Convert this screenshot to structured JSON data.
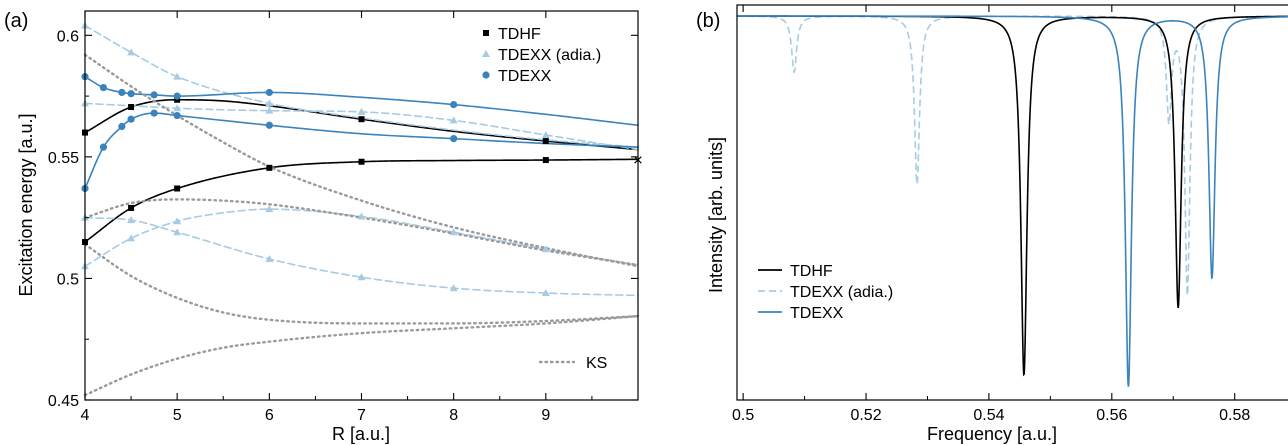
{
  "chart_data": [
    {
      "type": "line",
      "panel_label": "(a)",
      "xlabel": "R [a.u.]",
      "ylabel": "Excitation energy [a.u.]",
      "xlim": [
        4,
        10
      ],
      "ylim": [
        0.45,
        0.61
      ],
      "xticks": [
        4,
        5,
        6,
        7,
        8,
        9
      ],
      "yticks": [
        0.45,
        0.5,
        0.55,
        0.6
      ],
      "xtick_labels": [
        "4",
        "5",
        "6",
        "7",
        "8",
        "9"
      ],
      "ytick_labels": [
        "0.45",
        "0.5",
        "0.55",
        "0.6"
      ],
      "legend_top": "top-right",
      "legend_bottom": "bottom-right",
      "grid": false,
      "limit_marker": {
        "x": 10,
        "y": 0.549,
        "symbol": "×"
      },
      "series": [
        {
          "name": "TDHF",
          "style": "solid",
          "marker": "square",
          "color": "#000000",
          "legend": "top",
          "x": [
            4,
            4.5,
            5,
            6,
            7,
            8,
            9,
            10
          ],
          "y": [
            0.515,
            0.529,
            0.537,
            0.5455,
            0.548,
            0.5485,
            0.5487,
            0.549
          ],
          "mx": [
            4,
            4.5,
            5,
            6,
            7,
            9
          ]
        },
        {
          "name": "",
          "style": "solid",
          "marker": "square",
          "color": "#000000",
          "x": [
            4,
            4.5,
            5,
            5.5,
            6,
            7,
            8,
            9,
            10
          ],
          "y": [
            0.56,
            0.5705,
            0.5735,
            0.573,
            0.571,
            0.5655,
            0.5605,
            0.5565,
            0.553
          ],
          "mx": [
            4,
            4.5,
            5,
            7,
            9
          ]
        },
        {
          "name": "TDEXX (adia.)",
          "style": "dashed",
          "marker": "triangle",
          "color": "#a6cbe3",
          "legend": "top",
          "x": [
            4,
            4.5,
            5,
            6,
            7,
            8,
            9,
            10
          ],
          "y": [
            0.604,
            0.593,
            0.583,
            0.572,
            0.566,
            0.561,
            0.557,
            0.554
          ],
          "mx": [
            4,
            4.5,
            5,
            6
          ]
        },
        {
          "name": "",
          "style": "dashed",
          "marker": "triangle",
          "color": "#a6cbe3",
          "x": [
            4,
            4.5,
            5,
            6,
            7,
            8,
            9,
            10
          ],
          "y": [
            0.572,
            0.571,
            0.57,
            0.569,
            0.5685,
            0.565,
            0.559,
            0.553
          ],
          "mx": [
            4,
            5,
            6,
            7,
            8,
            9
          ]
        },
        {
          "name": "",
          "style": "dashed",
          "marker": "triangle",
          "color": "#a6cbe3",
          "x": [
            4,
            4.5,
            5,
            5.5,
            6,
            7,
            8,
            9,
            10
          ],
          "y": [
            0.505,
            0.5165,
            0.5235,
            0.527,
            0.5285,
            0.5255,
            0.519,
            0.512,
            0.5055
          ],
          "mx": [
            4,
            4.5,
            5,
            6,
            7,
            8,
            9
          ]
        },
        {
          "name": "",
          "style": "dashed",
          "marker": "triangle",
          "color": "#a6cbe3",
          "x": [
            4,
            4.5,
            5,
            6,
            7,
            8,
            9,
            10
          ],
          "y": [
            0.525,
            0.524,
            0.519,
            0.508,
            0.5005,
            0.496,
            0.494,
            0.493
          ],
          "mx": [
            4,
            4.5,
            5,
            6,
            7,
            8,
            9
          ]
        },
        {
          "name": "TDEXX",
          "style": "solid",
          "marker": "circle",
          "color": "#3a83bd",
          "legend": "top",
          "x": [
            4,
            4.2,
            4.4,
            4.5,
            4.75,
            5,
            6,
            7,
            8,
            9,
            10
          ],
          "y": [
            0.583,
            0.5785,
            0.5765,
            0.576,
            0.5755,
            0.575,
            0.5765,
            0.5745,
            0.5715,
            0.5675,
            0.563
          ],
          "mx": [
            4,
            4.2,
            4.4,
            4.5,
            4.75,
            5,
            6,
            8
          ]
        },
        {
          "name": "",
          "style": "solid",
          "marker": "circle",
          "color": "#3a83bd",
          "x": [
            4,
            4.2,
            4.4,
            4.5,
            4.75,
            5,
            6,
            7,
            8,
            9,
            10
          ],
          "y": [
            0.537,
            0.554,
            0.5625,
            0.5655,
            0.568,
            0.567,
            0.563,
            0.5595,
            0.5575,
            0.5555,
            0.554
          ],
          "mx": [
            4,
            4.2,
            4.4,
            4.5,
            4.75,
            5,
            6,
            8
          ]
        },
        {
          "name": "KS",
          "style": "dotted",
          "marker": "none",
          "color": "#9a9a9a",
          "legend": "bottom",
          "x": [
            4,
            4.5,
            5,
            5.5,
            6,
            7,
            8,
            9,
            10
          ],
          "y": [
            0.592,
            0.579,
            0.567,
            0.556,
            0.546,
            0.532,
            0.521,
            0.5125,
            0.505
          ],
          "mx": []
        },
        {
          "name": "",
          "style": "dotted",
          "marker": "none",
          "color": "#9a9a9a",
          "x": [
            4,
            4.5,
            5,
            5.5,
            6,
            7,
            8,
            9,
            10
          ],
          "y": [
            0.525,
            0.531,
            0.5325,
            0.532,
            0.5305,
            0.525,
            0.5185,
            0.5115,
            0.5055
          ],
          "mx": []
        },
        {
          "name": "",
          "style": "dotted",
          "marker": "none",
          "color": "#9a9a9a",
          "x": [
            4,
            4.5,
            5,
            5.5,
            6,
            7,
            8,
            9,
            10
          ],
          "y": [
            0.514,
            0.501,
            0.492,
            0.486,
            0.483,
            0.4815,
            0.4815,
            0.4825,
            0.4845
          ],
          "mx": []
        },
        {
          "name": "",
          "style": "dotted",
          "marker": "none",
          "color": "#9a9a9a",
          "x": [
            4,
            4.5,
            5,
            5.5,
            6,
            7,
            8,
            9,
            10
          ],
          "y": [
            0.452,
            0.4605,
            0.467,
            0.4715,
            0.474,
            0.4775,
            0.4795,
            0.4815,
            0.4845
          ],
          "mx": []
        }
      ]
    },
    {
      "type": "line",
      "panel_label": "(b)",
      "xlabel": "Frequency [a.u.]",
      "ylabel": "Intensity [arb. units]",
      "xlim": [
        0.499,
        0.589
      ],
      "ylim": [
        0,
        1
      ],
      "xticks": [
        0.5,
        0.52,
        0.54,
        0.56,
        0.58
      ],
      "xtick_labels": [
        "0.5",
        "0.52",
        "0.54",
        "0.56",
        "0.58"
      ],
      "legend": "bottom-left",
      "grid": false,
      "series": [
        {
          "name": "TDHF",
          "style": "solid",
          "color": "#000000",
          "peaks": [
            {
              "f": 0.5457,
              "depth": 0.96,
              "width": 0.0006
            },
            {
              "f": 0.5708,
              "depth": 0.78,
              "width": 0.0006
            }
          ]
        },
        {
          "name": "TDEXX (adia.)",
          "style": "dashed",
          "color": "#a6cbe3",
          "peaks": [
            {
              "f": 0.5083,
              "depth": 0.15,
              "width": 0.0005
            },
            {
              "f": 0.5283,
              "depth": 0.45,
              "width": 0.0005
            },
            {
              "f": 0.5693,
              "depth": 0.27,
              "width": 0.0005
            },
            {
              "f": 0.5723,
              "depth": 0.74,
              "width": 0.0005
            }
          ]
        },
        {
          "name": "TDEXX",
          "style": "solid",
          "color": "#3a83bd",
          "peaks": [
            {
              "f": 0.5627,
              "depth": 0.99,
              "width": 0.0006
            },
            {
              "f": 0.5763,
              "depth": 0.7,
              "width": 0.0006
            }
          ]
        }
      ]
    }
  ]
}
